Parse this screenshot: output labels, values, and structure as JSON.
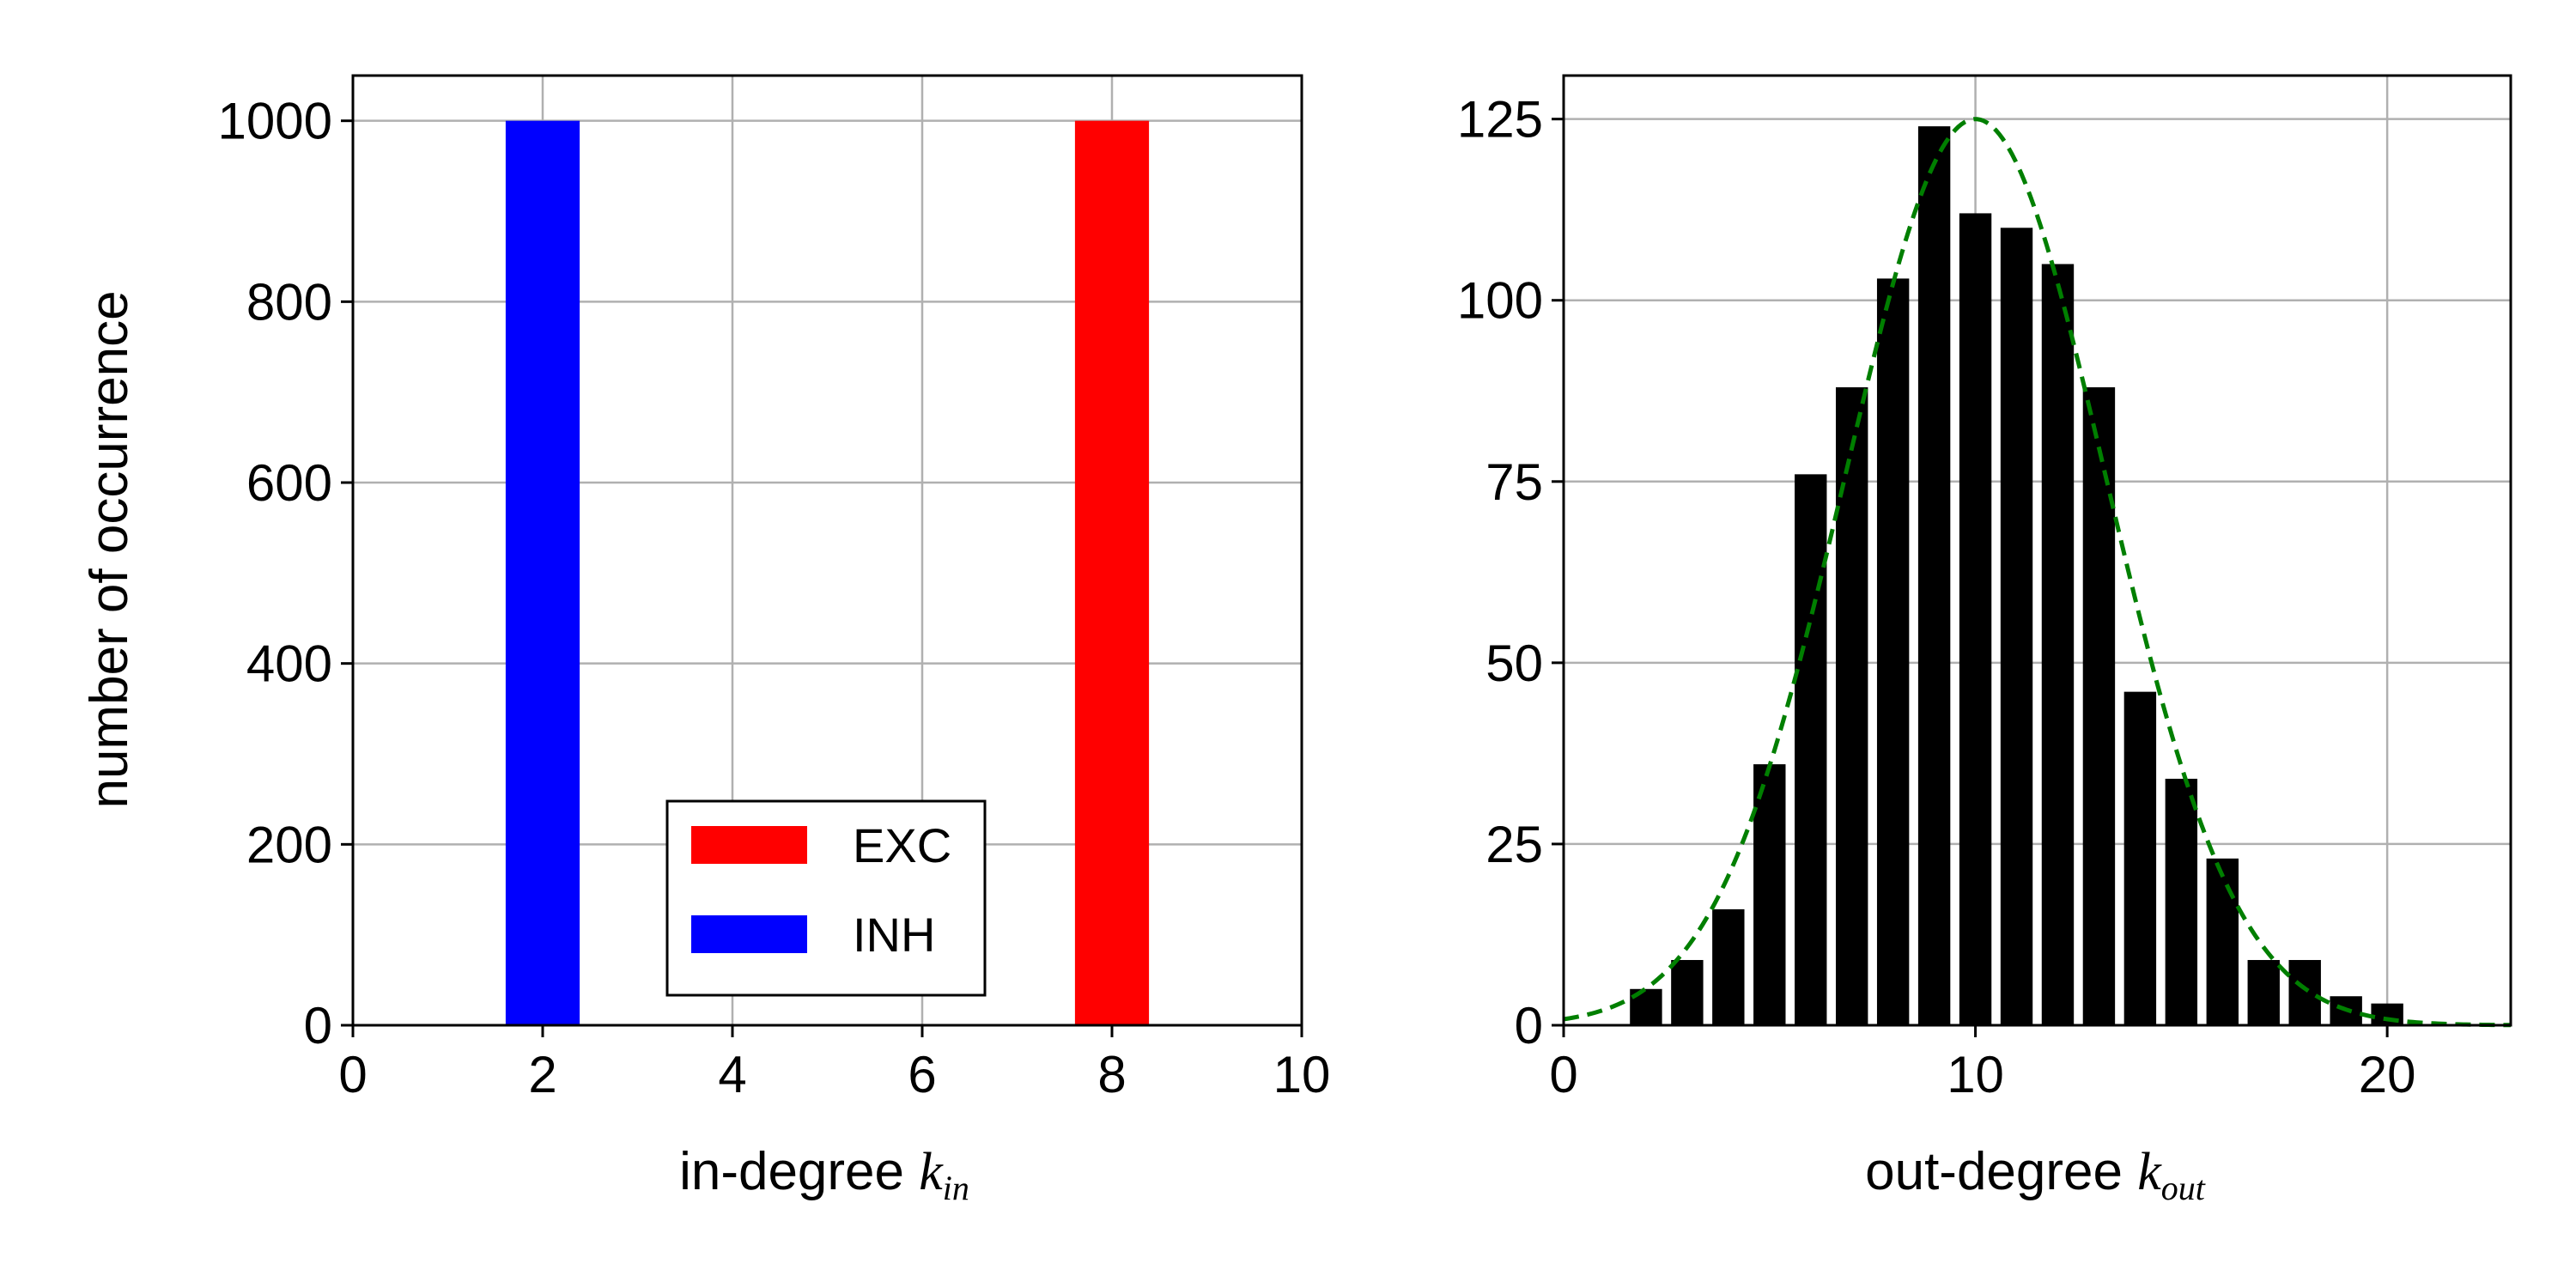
{
  "chart_data": [
    {
      "type": "bar",
      "xlabel": "in-degree",
      "xlabel_var": "k",
      "xlabel_sub": "in",
      "ylabel": "number of occurrence",
      "xlim": [
        0,
        10
      ],
      "ylim": [
        0,
        1050
      ],
      "xticks": [
        0,
        2,
        4,
        6,
        8,
        10
      ],
      "yticks": [
        0,
        200,
        400,
        600,
        800,
        1000
      ],
      "grid": true,
      "legend_position": "lower-center",
      "series": [
        {
          "name": "EXC",
          "color": "#ff0000",
          "x": [
            8
          ],
          "values": [
            1000
          ]
        },
        {
          "name": "INH",
          "color": "#0000ff",
          "x": [
            2
          ],
          "values": [
            1000
          ]
        }
      ]
    },
    {
      "type": "bar",
      "xlabel": "out-degree",
      "xlabel_var": "k",
      "xlabel_sub": "out",
      "ylabel": "",
      "xlim": [
        0,
        23
      ],
      "ylim": [
        0,
        131
      ],
      "xticks": [
        0,
        10,
        20
      ],
      "yticks": [
        0,
        25,
        50,
        75,
        100,
        125
      ],
      "grid": true,
      "bar_color": "#000000",
      "x": [
        2,
        3,
        4,
        5,
        6,
        7,
        8,
        9,
        10,
        11,
        12,
        13,
        14,
        15,
        16,
        17,
        18,
        19,
        20
      ],
      "values": [
        5,
        9,
        16,
        36,
        76,
        88,
        103,
        124,
        112,
        110,
        105,
        88,
        46,
        34,
        23,
        9,
        9,
        4,
        3
      ],
      "fit_curve": {
        "style": "dashed",
        "color": "#007f00",
        "shape": "gaussian",
        "mean": 10,
        "peak": 125,
        "sigma": 3.16
      }
    }
  ]
}
